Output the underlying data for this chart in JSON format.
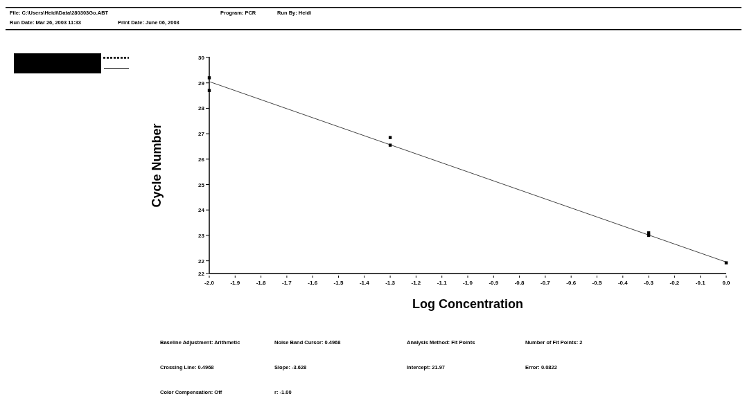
{
  "chart_data": {
    "type": "scatter",
    "xlabel": "Log Concentration",
    "ylabel": "Cycle Number",
    "xlim": [
      -2.0,
      0.0
    ],
    "xticks": [
      {
        "value": -2.0,
        "label": "-2.0"
      },
      {
        "value": -1.9,
        "label": "-1.9"
      },
      {
        "value": -1.8,
        "label": "-1.8"
      },
      {
        "value": -1.7,
        "label": "-1.7"
      },
      {
        "value": -1.6,
        "label": "-1.6"
      },
      {
        "value": -1.5,
        "label": "-1.5"
      },
      {
        "value": -1.4,
        "label": "-1.4"
      },
      {
        "value": -1.3,
        "label": "-1.3"
      },
      {
        "value": -1.2,
        "label": "-1.2"
      },
      {
        "value": -1.1,
        "label": "-1.1"
      },
      {
        "value": -1.0,
        "label": "-1.0"
      },
      {
        "value": -0.9,
        "label": "-0.9"
      },
      {
        "value": -0.8,
        "label": "-0.8"
      },
      {
        "value": -0.7,
        "label": "-0.7"
      },
      {
        "value": -0.6,
        "label": "-0.6"
      },
      {
        "value": -0.5,
        "label": "-0.5"
      },
      {
        "value": -0.4,
        "label": "-0.4"
      },
      {
        "value": -0.3,
        "label": "-0.3"
      },
      {
        "value": -0.2,
        "label": "-0.2"
      },
      {
        "value": -0.1,
        "label": "-0.1"
      },
      {
        "value": 0.0,
        "label": "0.0"
      }
    ],
    "ylim": [
      21.5,
      30
    ],
    "yticks": [
      {
        "value": 21.5,
        "label": "22"
      },
      22,
      23,
      24,
      25,
      26,
      27,
      28,
      29,
      30
    ],
    "marker": "square",
    "grid": false,
    "series": [
      {
        "color": "#000000",
        "x": [
          -2.0,
          -2.0,
          -1.3,
          -1.3,
          -0.3,
          -0.3,
          0.0
        ],
        "values": [
          29.2,
          28.7,
          26.85,
          26.55,
          23.1,
          23.0,
          21.92
        ]
      },
      {
        "type": "line",
        "color": "#444444",
        "line_style": "solid",
        "marker": "none",
        "x": [
          -2.0,
          0.0
        ],
        "values": [
          29.05,
          21.95
        ]
      }
    ],
    "annotations": [
      "File: C:\\Users\\Heidi\\Data\\280303Go.ABT",
      "Program: PCR",
      "Run By: Heidi",
      "Run Date: Mar 26, 2003 11:33",
      "Print Date: June 06, 2003",
      "Baseline Adjustment: Arithmetic",
      "Noise Band Cursor: 0.4968",
      "Analysis Method: Fit Points",
      "Number of Fit Points: 2",
      "Crossing Line: 0.4968",
      "Slope: -3.628",
      "Intercept: 21.97",
      "Error: 0.0822",
      "Color Compensation: Off",
      "r: -1.00"
    ]
  }
}
